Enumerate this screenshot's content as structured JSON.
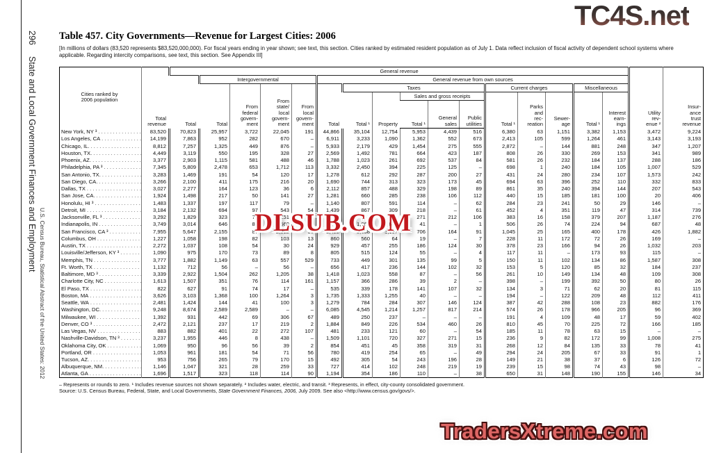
{
  "sidebar": {
    "page_number": "296",
    "chapter": "State and Local Government Finances and Employment",
    "imprint": "U.S. Census Bureau, Statistical Abstract of the United States: 2012"
  },
  "header": {
    "title": "Table 457. City Governments—Revenue for Largest Cities: 2006",
    "headnote": "[In millions of dollars (83,520 represents $83,520,000,000). For fiscal years ending in year shown; see text, this section. Cities ranked by estimated resident population as of July 1. Data reflect inclusion of fiscal activity of dependent school systems where applicable. Regarding intercity comparisons, see text, this section. See Appendix III]"
  },
  "watermarks": {
    "top_right": "TC4S.net",
    "center": "DLSUB.COM",
    "bottom_right": "TradersXtreme.com"
  },
  "table": {
    "stub_header": "Cities ranked by\n2006 population",
    "spanners": {
      "general_revenue": "General revenue",
      "intergovernmental": "Intergovernmental",
      "own_sources": "General revenue from own sources",
      "taxes": "Taxes",
      "sales": "Sales and gross receipts",
      "current_charges": "Current charges",
      "miscellaneous": "Miscellaneous"
    },
    "columns": {
      "total_revenue": "Total\nrevenue",
      "gr_total": "Total",
      "ig_total": "Total",
      "ig_federal": "From\nfederal\ngovern-\nment",
      "ig_state_local": "From\nstate/\nlocal\ngovern-\nment",
      "ig_local": "From\nlocal\ngovern-\nment",
      "own_total": "Total",
      "tax_total": "Total ¹",
      "property": "Property",
      "sales_total": "Total ¹",
      "general_sales": "General\nsales",
      "public_utilities": "Public\nutilities",
      "cc_total": "Total ¹",
      "parks": "Parks\nand\nrec-\nreation",
      "sewerage": "Sewer-\nage",
      "misc_total": "Total ¹",
      "interest": "Interest\nearn-\nings",
      "utility_revenue": "Utility\nrev-\nenue ²",
      "insurance_trust": "Insur-\nance\ntrust\nrevenue"
    },
    "rows": [
      [
        "New York, NY ³",
        "83,520",
        "70,823",
        "25,957",
        "3,722",
        "22,045",
        "191",
        "44,866",
        "35,104",
        "12,754",
        "5,953",
        "4,439",
        "516",
        "6,380",
        "63",
        "1,151",
        "3,382",
        "1,153",
        "3,472",
        "9,224"
      ],
      [
        "Los Angeles, CA",
        "14,199",
        "7,863",
        "952",
        "282",
        "670",
        "–",
        "6,911",
        "3,233",
        "1,090",
        "1,362",
        "552",
        "673",
        "2,413",
        "105",
        "599",
        "1,264",
        "461",
        "3,143",
        "3,193"
      ],
      [
        "Chicago, IL.",
        "8,812",
        "7,257",
        "1,325",
        "449",
        "876",
        "–",
        "5,933",
        "2,179",
        "429",
        "1,454",
        "275",
        "555",
        "2,872",
        "–",
        "144",
        "881",
        "248",
        "347",
        "1,207"
      ],
      [
        "Houston, TX.",
        "4,449",
        "3,119",
        "550",
        "195",
        "328",
        "27",
        "2,569",
        "1,492",
        "781",
        "664",
        "423",
        "187",
        "808",
        "26",
        "330",
        "269",
        "153",
        "341",
        "989"
      ],
      [
        "Phoenix, AZ.",
        "3,377",
        "2,903",
        "1,115",
        "581",
        "488",
        "46",
        "1,788",
        "1,023",
        "261",
        "692",
        "537",
        "84",
        "581",
        "26",
        "232",
        "184",
        "137",
        "288",
        "186"
      ],
      [
        "Philadelphia, PA ³",
        "7,345",
        "5,809",
        "2,478",
        "653",
        "1,712",
        "113",
        "3,332",
        "2,450",
        "394",
        "225",
        "125",
        "–",
        "698",
        "1",
        "240",
        "184",
        "105",
        "1,007",
        "529"
      ],
      [
        "San Antonio, TX.",
        "3,283",
        "1,469",
        "191",
        "54",
        "120",
        "17",
        "1,278",
        "612",
        "292",
        "287",
        "200",
        "27",
        "431",
        "24",
        "280",
        "234",
        "107",
        "1,573",
        "242"
      ],
      [
        "San Diego, CA.",
        "3,266",
        "2,100",
        "411",
        "175",
        "216",
        "20",
        "1,690",
        "744",
        "313",
        "323",
        "173",
        "45",
        "694",
        "63",
        "396",
        "252",
        "110",
        "332",
        "833"
      ],
      [
        "Dallas, TX",
        "3,027",
        "2,277",
        "164",
        "123",
        "36",
        "6",
        "2,112",
        "857",
        "488",
        "329",
        "198",
        "89",
        "861",
        "35",
        "240",
        "394",
        "144",
        "207",
        "543"
      ],
      [
        "San Jose, CA.",
        "1,924",
        "1,498",
        "217",
        "50",
        "141",
        "27",
        "1,281",
        "660",
        "285",
        "238",
        "106",
        "112",
        "440",
        "15",
        "185",
        "181",
        "100",
        "20",
        "406"
      ],
      [
        "Honolulu, HI ³",
        "1,483",
        "1,337",
        "197",
        "117",
        "79",
        "–",
        "1,140",
        "807",
        "591",
        "114",
        "–",
        "62",
        "284",
        "23",
        "241",
        "50",
        "29",
        "146",
        "–"
      ],
      [
        "Detroit, MI",
        "3,184",
        "2,132",
        "694",
        "97",
        "543",
        "54",
        "1,439",
        "867",
        "309",
        "218",
        "–",
        "61",
        "452",
        "4",
        "351",
        "119",
        "47",
        "314",
        "739"
      ],
      [
        "Jacksonville, FL ³",
        "3,292",
        "1,829",
        "323",
        "72",
        "251",
        "–",
        "1,506",
        "745",
        "535",
        "271",
        "212",
        "106",
        "383",
        "16",
        "158",
        "379",
        "207",
        "1,187",
        "276"
      ],
      [
        "Indianapolis, IN",
        "3,749",
        "3,014",
        "646",
        "86",
        "560",
        "–",
        "2,368",
        "1,062",
        "887",
        "41",
        "–",
        "1",
        "506",
        "26",
        "74",
        "224",
        "94",
        "687",
        "48"
      ],
      [
        "San Francisco, CA ³",
        "7,955",
        "5,647",
        "2,155",
        "87",
        "2,012",
        "56",
        "3,492",
        "2,038",
        "1,167",
        "706",
        "164",
        "91",
        "1,045",
        "25",
        "165",
        "400",
        "178",
        "426",
        "1,882"
      ],
      [
        "Columbus, OH",
        "1,227",
        "1,058",
        "198",
        "82",
        "103",
        "13",
        "860",
        "560",
        "64",
        "19",
        "–",
        "7",
        "228",
        "11",
        "172",
        "72",
        "26",
        "169",
        "–"
      ],
      [
        "Austin, TX",
        "2,272",
        "1,037",
        "108",
        "54",
        "30",
        "24",
        "929",
        "457",
        "255",
        "186",
        "124",
        "30",
        "378",
        "23",
        "166",
        "94",
        "26",
        "1,032",
        "203"
      ],
      [
        "Louisville/Jefferson, KY ³",
        "1,090",
        "975",
        "170",
        "73",
        "89",
        "8",
        "805",
        "515",
        "124",
        "55",
        "–",
        "4",
        "117",
        "11",
        "–",
        "173",
        "93",
        "115",
        "–"
      ],
      [
        "Memphis, TN",
        "3,777",
        "1,882",
        "1,149",
        "63",
        "557",
        "529",
        "733",
        "449",
        "301",
        "135",
        "99",
        "5",
        "150",
        "11",
        "102",
        "134",
        "86",
        "1,587",
        "308"
      ],
      [
        "Ft. Worth, TX",
        "1,132",
        "712",
        "56",
        "–",
        "56",
        "–",
        "656",
        "417",
        "236",
        "144",
        "102",
        "32",
        "153",
        "5",
        "120",
        "85",
        "32",
        "184",
        "237"
      ],
      [
        "Baltimore, MD ³",
        "3,339",
        "2,922",
        "1,504",
        "262",
        "1,205",
        "38",
        "1,418",
        "1,023",
        "558",
        "87",
        "–",
        "56",
        "261",
        "10",
        "149",
        "134",
        "48",
        "109",
        "308"
      ],
      [
        "Charlotte City, NC",
        "1,613",
        "1,507",
        "351",
        "76",
        "114",
        "161",
        "1,157",
        "366",
        "286",
        "39",
        "2",
        "–",
        "398",
        "–",
        "199",
        "392",
        "50",
        "80",
        "26"
      ],
      [
        "El Paso, TX",
        "822",
        "627",
        "91",
        "74",
        "17",
        "–",
        "535",
        "339",
        "178",
        "141",
        "107",
        "32",
        "134",
        "3",
        "71",
        "62",
        "20",
        "81",
        "115"
      ],
      [
        "Boston, MA",
        "3,626",
        "3,103",
        "1,368",
        "100",
        "1,264",
        "3",
        "1,735",
        "1,333",
        "1,255",
        "40",
        "–",
        "–",
        "194",
        "–",
        "122",
        "209",
        "48",
        "112",
        "411"
      ],
      [
        "Seattle, WA",
        "2,481",
        "1,424",
        "144",
        "41",
        "100",
        "3",
        "1,279",
        "784",
        "284",
        "307",
        "146",
        "124",
        "387",
        "42",
        "288",
        "108",
        "23",
        "882",
        "176"
      ],
      [
        "Washington, DC.",
        "9,248",
        "8,674",
        "2,589",
        "2,589",
        "–",
        "–",
        "6,085",
        "4,545",
        "1,214",
        "1,257",
        "817",
        "214",
        "574",
        "26",
        "178",
        "966",
        "205",
        "96",
        "369"
      ],
      [
        "Milwaukee, WI",
        "1,392",
        "931",
        "442",
        "69",
        "306",
        "67",
        "489",
        "250",
        "237",
        "–",
        "–",
        "–",
        "191",
        "4",
        "109",
        "48",
        "17",
        "59",
        "402"
      ],
      [
        "Denver, CO ³",
        "2,472",
        "2,121",
        "237",
        "17",
        "219",
        "2",
        "1,884",
        "849",
        "226",
        "534",
        "460",
        "26",
        "810",
        "45",
        "70",
        "225",
        "72",
        "166",
        "185"
      ],
      [
        "Las Vegas, NV",
        "883",
        "882",
        "401",
        "22",
        "272",
        "107",
        "481",
        "233",
        "121",
        "60",
        "–",
        "54",
        "185",
        "11",
        "78",
        "63",
        "15",
        "–",
        "–"
      ],
      [
        "Nashville-Davidson, TN ³",
        "3,237",
        "1,955",
        "446",
        "8",
        "438",
        "–",
        "1,509",
        "1,101",
        "720",
        "327",
        "271",
        "15",
        "236",
        "9",
        "82",
        "172",
        "99",
        "1,008",
        "275"
      ],
      [
        "Oklahoma City, OK",
        "1,069",
        "950",
        "96",
        "56",
        "39",
        "2",
        "854",
        "451",
        "45",
        "358",
        "319",
        "31",
        "268",
        "12",
        "84",
        "135",
        "33",
        "78",
        "41"
      ],
      [
        "Portland, OR",
        "1,053",
        "961",
        "181",
        "54",
        "71",
        "56",
        "780",
        "419",
        "254",
        "65",
        "–",
        "49",
        "294",
        "24",
        "205",
        "67",
        "33",
        "91",
        "1"
      ],
      [
        "Tucson, AZ.",
        "953",
        "756",
        "265",
        "79",
        "170",
        "15",
        "492",
        "305",
        "54",
        "243",
        "196",
        "28",
        "149",
        "21",
        "38",
        "37",
        "6",
        "126",
        "72"
      ],
      [
        "Albuquerque, NM.",
        "1,146",
        "1,047",
        "321",
        "28",
        "259",
        "33",
        "727",
        "414",
        "102",
        "248",
        "219",
        "19",
        "239",
        "15",
        "98",
        "74",
        "43",
        "98",
        "–"
      ],
      [
        "Atlanta, GA",
        "1,696",
        "1,517",
        "323",
        "118",
        "114",
        "90",
        "1,194",
        "354",
        "186",
        "110",
        "–",
        "38",
        "650",
        "31",
        "148",
        "190",
        "155",
        "146",
        "34"
      ]
    ]
  },
  "footnotes": {
    "line1": "– Represents or rounds to zero. ¹ Includes revenue sources not shown separately. ² Includes water, electric, and transit. ³ Represents, in effect, city-county consolidated government.",
    "source_prefix": "Source: U.S. Census Bureau, Federal, State, and Local Governments, ",
    "source_italic": "State Government Finances, 2006,",
    "source_suffix": " July 2009. See also <http://www.census.gov/govs/>."
  },
  "misc": {
    "dot_leader": ". . . . . . . . . . . . . . . . . . . . . . . . . . . . . ."
  }
}
